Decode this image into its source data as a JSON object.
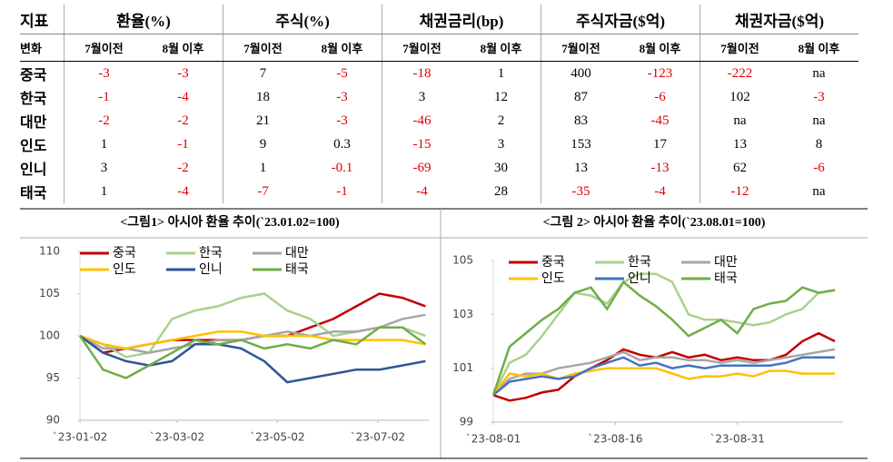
{
  "table": {
    "corner": [
      "지표",
      "변화"
    ],
    "header_groups": [
      "환율(%)",
      "주식(%)",
      "채권금리(bp)",
      "주식자금($억)",
      "채권자금($억)"
    ],
    "subheaders": [
      "7월이전",
      "8월 이후",
      "7월이전",
      "8월 이후",
      "7월이전",
      "8월 이후",
      "7월이전",
      "8월 이후",
      "7월이전",
      "8월 이후"
    ],
    "rows": [
      [
        "중국",
        "-3",
        "-3",
        "7",
        "-5",
        "-18",
        "1",
        "400",
        "-123",
        "-222",
        "na"
      ],
      [
        "한국",
        "-1",
        "-4",
        "18",
        "-3",
        "3",
        "12",
        "87",
        "-6",
        "102",
        "-3"
      ],
      [
        "대만",
        "-2",
        "-2",
        "21",
        "-3",
        "-46",
        "2",
        "83",
        "-45",
        "na",
        "na"
      ],
      [
        "인도",
        "1",
        "-1",
        "9",
        "0.3",
        "-15",
        "3",
        "153",
        "17",
        "13",
        "8"
      ],
      [
        "인니",
        "3",
        "-2",
        "1",
        "-0.1",
        "-69",
        "30",
        "13",
        "-13",
        "62",
        "-6"
      ],
      [
        "태국",
        "1",
        "-4",
        "-7",
        "-1",
        "-4",
        "28",
        "-35",
        "-4",
        "-12",
        "na"
      ]
    ]
  },
  "chart_data": [
    {
      "type": "line",
      "title": "<그림1> 아시아 환율 추이(`23.01.02=100)",
      "x": [
        "2023-01-02",
        "2023-01-16",
        "2023-01-30",
        "2023-02-13",
        "2023-02-27",
        "2023-03-13",
        "2023-03-27",
        "2023-04-10",
        "2023-04-24",
        "2023-05-08",
        "2023-05-22",
        "2023-06-05",
        "2023-06-19",
        "2023-07-03",
        "2023-07-17",
        "2023-07-31"
      ],
      "xlim": [
        "2023-01-02",
        "2023-08-02"
      ],
      "xticks": [
        {
          "value": "2023-01-02",
          "label": "`23-01-02"
        },
        {
          "value": "2023-03-02",
          "label": "`23-03-02"
        },
        {
          "value": "2023-05-02",
          "label": "`23-05-02"
        },
        {
          "value": "2023-07-02",
          "label": "`23-07-02"
        }
      ],
      "ylim": [
        90,
        110
      ],
      "yticks": [
        90,
        95,
        100,
        105,
        110
      ],
      "series": [
        {
          "name": "중국",
          "color": "#c00000",
          "values": [
            100,
            98,
            98.5,
            99,
            99.5,
            99.5,
            99.5,
            99.5,
            100,
            100,
            101,
            102,
            103.5,
            105,
            104.5,
            103.5
          ]
        },
        {
          "name": "한국",
          "color": "#a9d18e",
          "values": [
            100,
            99,
            97.5,
            98,
            102,
            103,
            103.5,
            104.5,
            105,
            103,
            102,
            100,
            100.5,
            101,
            101,
            100
          ]
        },
        {
          "name": "대만",
          "color": "#a6a6a6",
          "values": [
            100,
            98.5,
            98.5,
            98,
            98.5,
            99,
            99.5,
            99.5,
            100,
            100.5,
            100,
            100.5,
            100.5,
            101,
            102,
            102.5
          ]
        },
        {
          "name": "인도",
          "color": "#ffc000",
          "values": [
            100,
            99,
            98.5,
            99,
            99.5,
            100,
            100.5,
            100.5,
            100,
            100,
            100,
            99.5,
            99.5,
            99.5,
            99.5,
            99
          ]
        },
        {
          "name": "인니",
          "color": "#2f5597",
          "values": [
            100,
            98,
            97,
            96.5,
            97,
            99,
            99,
            98.5,
            97,
            94.5,
            95,
            95.5,
            96,
            96,
            96.5,
            97
          ]
        },
        {
          "name": "태국",
          "color": "#70ad47",
          "values": [
            100,
            96,
            95,
            96.5,
            98,
            99.5,
            99,
            99.5,
            98.5,
            99,
            98.5,
            99.5,
            99,
            101,
            101,
            99
          ]
        }
      ]
    },
    {
      "type": "line",
      "title": "<그림 2> 아시아 환율 추이(`23.08.01=100)",
      "x": [
        "2023-08-01",
        "2023-08-03",
        "2023-08-05",
        "2023-08-07",
        "2023-08-09",
        "2023-08-11",
        "2023-08-13",
        "2023-08-15",
        "2023-08-17",
        "2023-08-19",
        "2023-08-21",
        "2023-08-23",
        "2023-08-25",
        "2023-08-27",
        "2023-08-29",
        "2023-08-31",
        "2023-09-02",
        "2023-09-04",
        "2023-09-06",
        "2023-09-08",
        "2023-09-10",
        "2023-09-12"
      ],
      "xlim": [
        "2023-08-01",
        "2023-09-13"
      ],
      "xticks": [
        {
          "value": "2023-08-01",
          "label": "`23-08-01"
        },
        {
          "value": "2023-08-16",
          "label": "`23-08-16"
        },
        {
          "value": "2023-08-31",
          "label": "`23-08-31"
        }
      ],
      "ylim": [
        99,
        105
      ],
      "yticks": [
        99,
        101,
        103,
        105
      ],
      "series": [
        {
          "name": "중국",
          "color": "#c00000",
          "values": [
            100,
            99.8,
            99.9,
            100.1,
            100.2,
            100.7,
            101,
            101.3,
            101.7,
            101.5,
            101.4,
            101.6,
            101.4,
            101.5,
            101.3,
            101.4,
            101.3,
            101.3,
            101.5,
            102,
            102.3,
            102
          ]
        },
        {
          "name": "한국",
          "color": "#a9d18e",
          "values": [
            100,
            101.2,
            101.5,
            102.2,
            103,
            103.8,
            103.7,
            103.4,
            104.2,
            104.5,
            104.5,
            104.2,
            103,
            102.8,
            102.8,
            102.7,
            102.6,
            102.7,
            103,
            103.2,
            103.8,
            103.9
          ]
        },
        {
          "name": "대만",
          "color": "#a6a6a6",
          "values": [
            100,
            100.6,
            100.8,
            100.8,
            101,
            101.1,
            101.2,
            101.4,
            101.6,
            101.3,
            101.4,
            101.4,
            101.3,
            101.3,
            101.2,
            101.3,
            101.2,
            101.3,
            101.4,
            101.5,
            101.6,
            101.7
          ]
        },
        {
          "name": "인도",
          "color": "#ffc000",
          "values": [
            100,
            100.8,
            100.7,
            100.8,
            100.6,
            100.8,
            100.9,
            101,
            101,
            101,
            101,
            100.8,
            100.6,
            100.7,
            100.7,
            100.8,
            100.7,
            100.9,
            100.9,
            100.8,
            100.8,
            100.8
          ]
        },
        {
          "name": "인니",
          "color": "#4472c4",
          "values": [
            100,
            100.5,
            100.6,
            100.7,
            100.6,
            100.7,
            101,
            101.2,
            101.4,
            101.1,
            101.2,
            101,
            101.1,
            101,
            101.1,
            101.1,
            101.1,
            101.1,
            101.2,
            101.4,
            101.4,
            101.4
          ]
        },
        {
          "name": "태국",
          "color": "#70ad47",
          "values": [
            100,
            101.8,
            102.3,
            102.8,
            103.2,
            103.8,
            104,
            103.2,
            104.2,
            103.7,
            103.3,
            102.8,
            102.2,
            102.5,
            102.8,
            102.3,
            103.2,
            103.4,
            103.5,
            104,
            103.8,
            103.9
          ]
        }
      ]
    }
  ]
}
